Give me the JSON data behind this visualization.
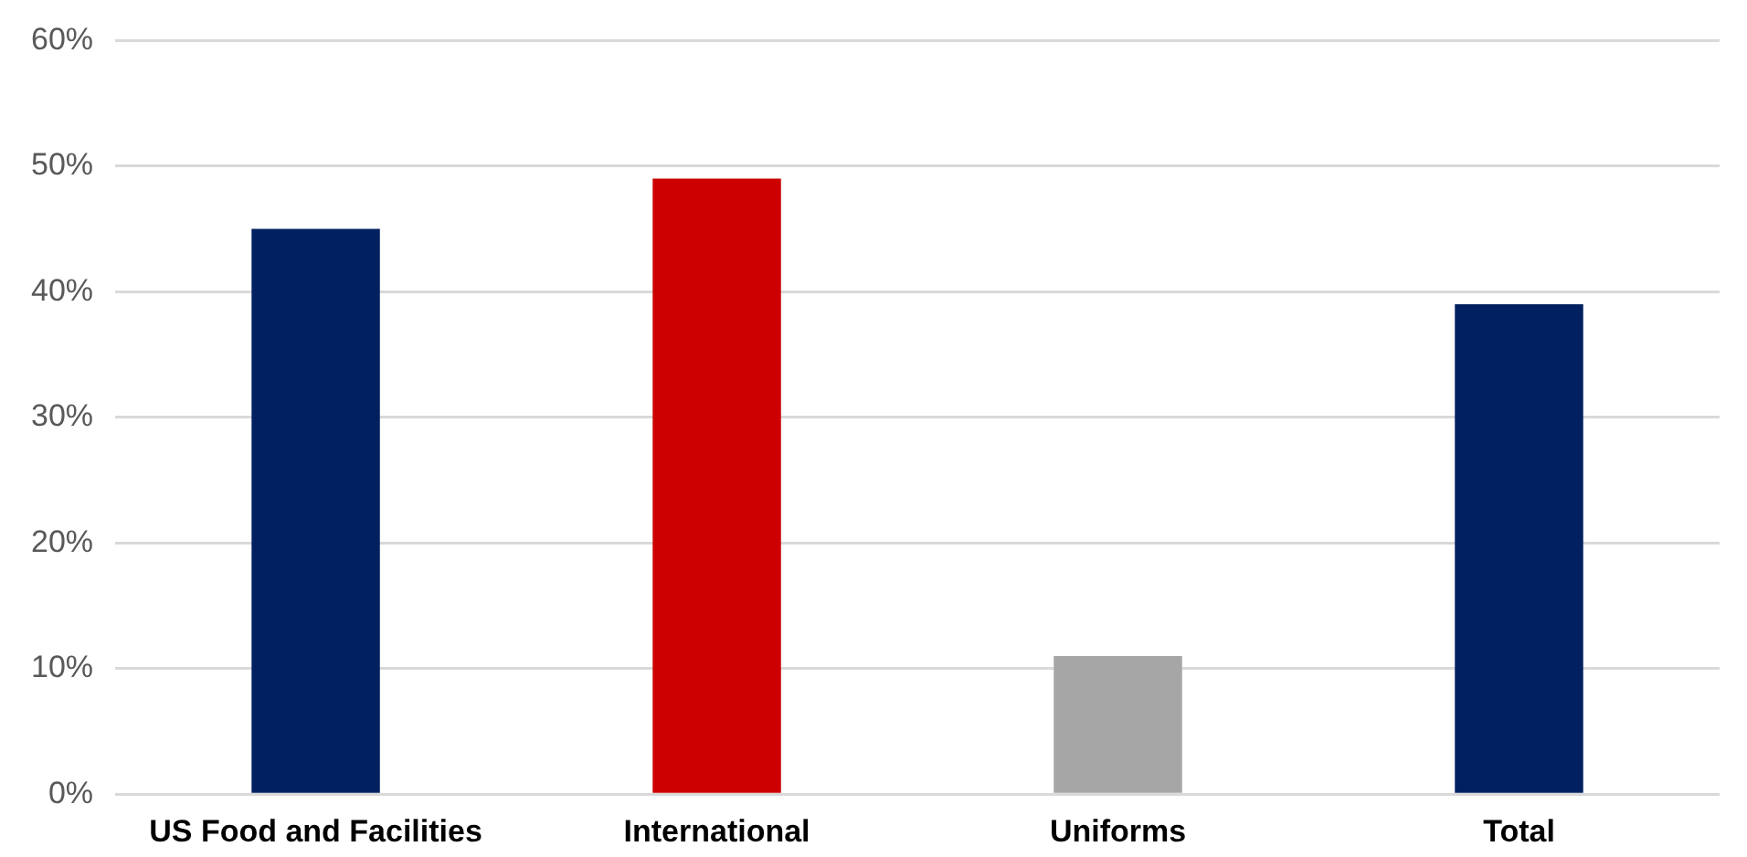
{
  "chart_data": {
    "type": "bar",
    "categories": [
      "US Food and Facilities",
      "International",
      "Uniforms",
      "Total"
    ],
    "values": [
      45,
      49,
      11,
      39
    ],
    "colors": [
      "#002060",
      "#cc0000",
      "#a6a6a6",
      "#002060"
    ],
    "ylim": [
      0,
      60
    ],
    "yticks": [
      {
        "value": 0,
        "label": "0%"
      },
      {
        "value": 10,
        "label": "10%"
      },
      {
        "value": 20,
        "label": "20%"
      },
      {
        "value": 30,
        "label": "30%"
      },
      {
        "value": 40,
        "label": "40%"
      },
      {
        "value": 50,
        "label": "50%"
      },
      {
        "value": 60,
        "label": "60%"
      }
    ],
    "grid": "y",
    "legend": false
  }
}
